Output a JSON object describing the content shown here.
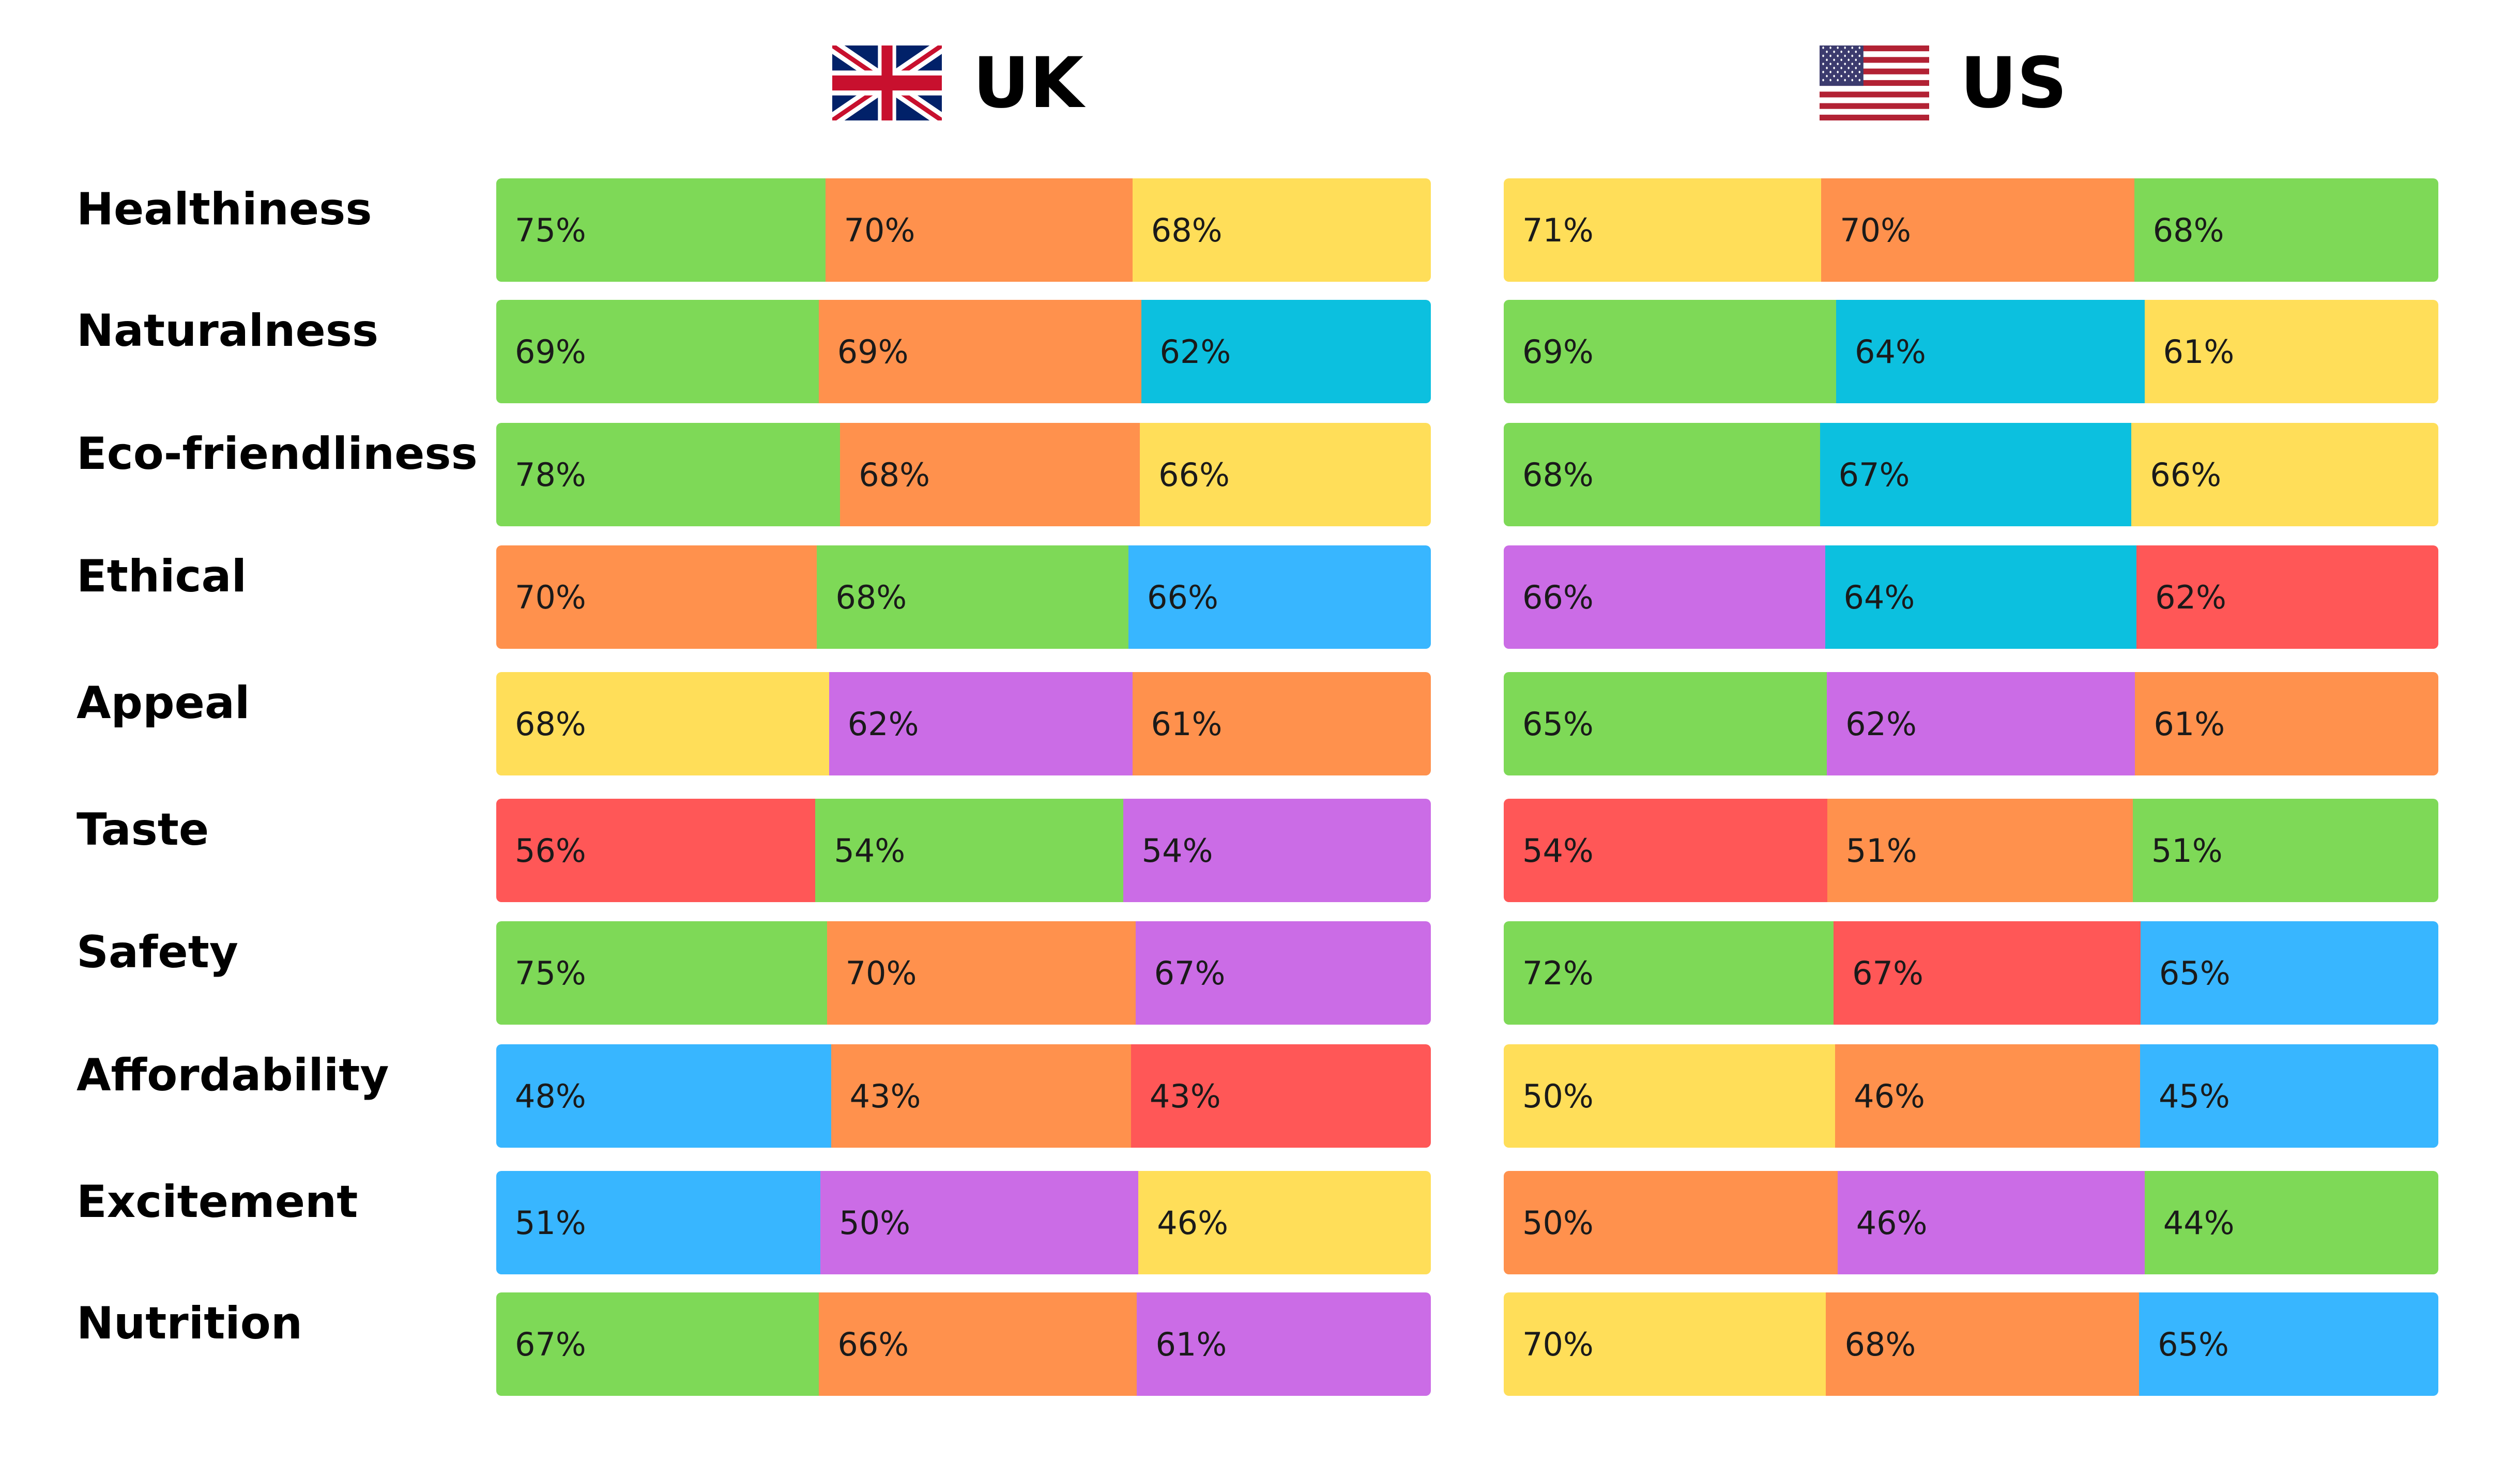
{
  "colors": {
    "green": "#7ed957",
    "orange": "#ff914d",
    "yellow": "#ffde59",
    "cyan": "#0cc0df",
    "blue": "#38b6ff",
    "purple": "#cb6ce6",
    "red": "#ff5757"
  },
  "chart_data": {
    "type": "bar",
    "categories": [
      "Healthiness",
      "Naturalness",
      "Eco-friendliness",
      "Ethical",
      "Appeal",
      "Taste",
      "Safety",
      "Affordability",
      "Excitement",
      "Nutrition"
    ],
    "panels": [
      {
        "country": "UK",
        "flag": "uk-flag",
        "rows": [
          [
            {
              "label": "75%",
              "value": 75,
              "color": "green"
            },
            {
              "label": "70%",
              "value": 70,
              "color": "orange"
            },
            {
              "label": "68%",
              "value": 68,
              "color": "yellow"
            }
          ],
          [
            {
              "label": "69%",
              "value": 69,
              "color": "green"
            },
            {
              "label": "69%",
              "value": 69,
              "color": "orange"
            },
            {
              "label": "62%",
              "value": 62,
              "color": "cyan"
            }
          ],
          [
            {
              "label": "78%",
              "value": 78,
              "color": "green"
            },
            {
              "label": "68%",
              "value": 68,
              "color": "orange"
            },
            {
              "label": "66%",
              "value": 66,
              "color": "yellow"
            }
          ],
          [
            {
              "label": "70%",
              "value": 70,
              "color": "orange"
            },
            {
              "label": "68%",
              "value": 68,
              "color": "green"
            },
            {
              "label": "66%",
              "value": 66,
              "color": "blue"
            }
          ],
          [
            {
              "label": "68%",
              "value": 68,
              "color": "yellow"
            },
            {
              "label": "62%",
              "value": 62,
              "color": "purple"
            },
            {
              "label": "61%",
              "value": 61,
              "color": "orange"
            }
          ],
          [
            {
              "label": "56%",
              "value": 56,
              "color": "red"
            },
            {
              "label": "54%",
              "value": 54,
              "color": "green"
            },
            {
              "label": "54%",
              "value": 54,
              "color": "purple"
            }
          ],
          [
            {
              "label": "75%",
              "value": 75,
              "color": "green"
            },
            {
              "label": "70%",
              "value": 70,
              "color": "orange"
            },
            {
              "label": "67%",
              "value": 67,
              "color": "purple"
            }
          ],
          [
            {
              "label": "48%",
              "value": 48,
              "color": "blue"
            },
            {
              "label": "43%",
              "value": 43,
              "color": "orange"
            },
            {
              "label": "43%",
              "value": 43,
              "color": "red"
            }
          ],
          [
            {
              "label": "51%",
              "value": 51,
              "color": "blue"
            },
            {
              "label": "50%",
              "value": 50,
              "color": "purple"
            },
            {
              "label": "46%",
              "value": 46,
              "color": "yellow"
            }
          ],
          [
            {
              "label": "67%",
              "value": 67,
              "color": "green"
            },
            {
              "label": "66%",
              "value": 66,
              "color": "orange"
            },
            {
              "label": "61%",
              "value": 61,
              "color": "purple"
            }
          ]
        ]
      },
      {
        "country": "US",
        "flag": "us-flag",
        "rows": [
          [
            {
              "label": "71%",
              "value": 71,
              "color": "yellow"
            },
            {
              "label": "70%",
              "value": 70,
              "color": "orange"
            },
            {
              "label": "68%",
              "value": 68,
              "color": "green"
            }
          ],
          [
            {
              "label": "69%",
              "value": 69,
              "color": "green"
            },
            {
              "label": "64%",
              "value": 64,
              "color": "cyan"
            },
            {
              "label": "61%",
              "value": 61,
              "color": "yellow"
            }
          ],
          [
            {
              "label": "68%",
              "value": 68,
              "color": "green"
            },
            {
              "label": "67%",
              "value": 67,
              "color": "cyan"
            },
            {
              "label": "66%",
              "value": 66,
              "color": "yellow"
            }
          ],
          [
            {
              "label": "66%",
              "value": 66,
              "color": "purple"
            },
            {
              "label": "64%",
              "value": 64,
              "color": "cyan"
            },
            {
              "label": "62%",
              "value": 62,
              "color": "red"
            }
          ],
          [
            {
              "label": "65%",
              "value": 65,
              "color": "green"
            },
            {
              "label": "62%",
              "value": 62,
              "color": "purple"
            },
            {
              "label": "61%",
              "value": 61,
              "color": "orange"
            }
          ],
          [
            {
              "label": "54%",
              "value": 54,
              "color": "red"
            },
            {
              "label": "51%",
              "value": 51,
              "color": "orange"
            },
            {
              "label": "51%",
              "value": 51,
              "color": "green"
            }
          ],
          [
            {
              "label": "72%",
              "value": 72,
              "color": "green"
            },
            {
              "label": "67%",
              "value": 67,
              "color": "red"
            },
            {
              "label": "65%",
              "value": 65,
              "color": "blue"
            }
          ],
          [
            {
              "label": "50%",
              "value": 50,
              "color": "yellow"
            },
            {
              "label": "46%",
              "value": 46,
              "color": "orange"
            },
            {
              "label": "45%",
              "value": 45,
              "color": "blue"
            }
          ],
          [
            {
              "label": "50%",
              "value": 50,
              "color": "orange"
            },
            {
              "label": "46%",
              "value": 46,
              "color": "purple"
            },
            {
              "label": "44%",
              "value": 44,
              "color": "green"
            }
          ],
          [
            {
              "label": "70%",
              "value": 70,
              "color": "yellow"
            },
            {
              "label": "68%",
              "value": 68,
              "color": "orange"
            },
            {
              "label": "65%",
              "value": 65,
              "color": "blue"
            }
          ]
        ]
      }
    ]
  }
}
